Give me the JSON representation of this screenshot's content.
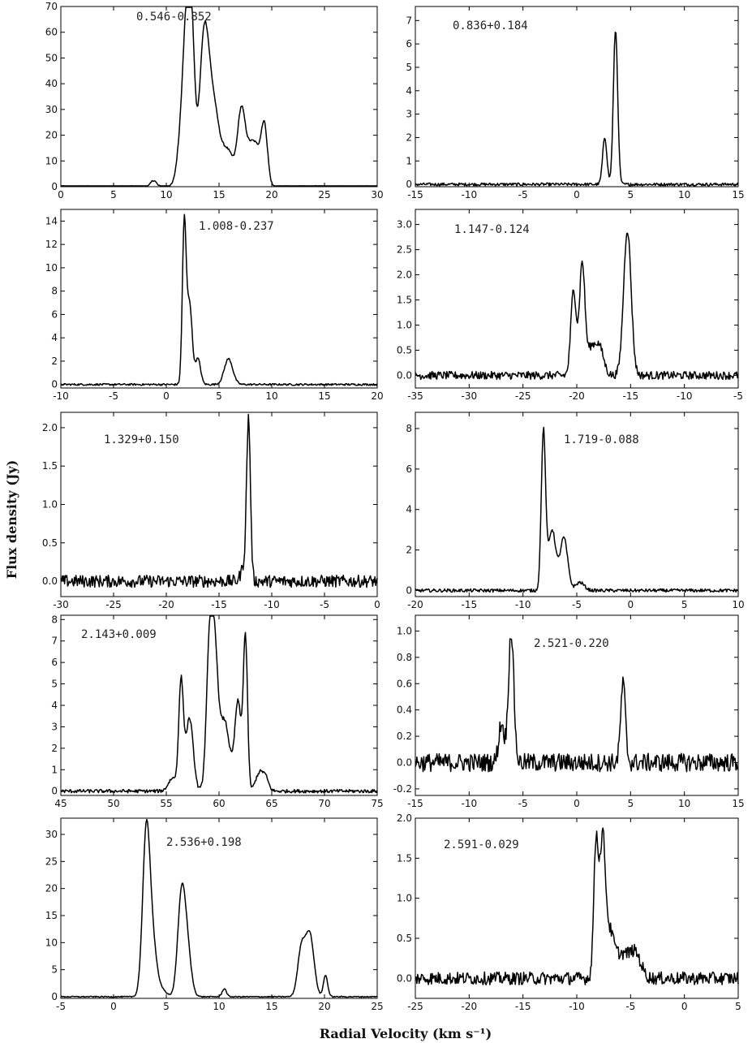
{
  "ylabel": "Flux density (Jy)",
  "xlabel": "Radial Velocity (km s⁻¹)",
  "chart_data": [
    {
      "type": "line",
      "title": "0.546-0.852",
      "xlim": [
        0,
        30
      ],
      "ylim": [
        0,
        70
      ],
      "xticks": [
        0,
        5,
        10,
        15,
        20,
        25,
        30
      ],
      "yticks": [
        0,
        10,
        20,
        30,
        40,
        50,
        60,
        70
      ],
      "xtick_labels": [
        "0",
        "5",
        "10",
        "15",
        "20",
        "25",
        "30"
      ],
      "ytick_labels": [
        "0",
        "10",
        "20",
        "30",
        "40",
        "50",
        "60",
        "70"
      ],
      "noise": 0.4,
      "peaks": [
        [
          8.8,
          2.5,
          0.25
        ],
        [
          11.3,
          13,
          0.35
        ],
        [
          11.9,
          58,
          0.35
        ],
        [
          12.4,
          52,
          0.3
        ],
        [
          13.6,
          58,
          0.45
        ],
        [
          14.5,
          28,
          0.5
        ],
        [
          15.8,
          14,
          0.6
        ],
        [
          17.1,
          26,
          0.35
        ],
        [
          17.9,
          14,
          0.5
        ],
        [
          18.6,
          10,
          0.4
        ],
        [
          19.3,
          23,
          0.3
        ]
      ],
      "series": [
        {
          "values": []
        }
      ]
    },
    {
      "type": "line",
      "title": "0.836+0.184",
      "xlim": [
        -15,
        15
      ],
      "ylim": [
        -0.1,
        7.6
      ],
      "xticks": [
        -15,
        -10,
        -5,
        0,
        5,
        10,
        15
      ],
      "yticks": [
        0,
        1,
        2,
        3,
        4,
        5,
        6,
        7
      ],
      "xtick_labels": [
        "-15",
        "-10",
        "-5",
        "0",
        "5",
        "10",
        "15"
      ],
      "ytick_labels": [
        "0",
        "1",
        "2",
        "3",
        "4",
        "5",
        "6",
        "7"
      ],
      "noise": 0.06,
      "peaks": [
        [
          2.6,
          2.0,
          0.2
        ],
        [
          3.6,
          6.6,
          0.2
        ]
      ],
      "series": [
        {
          "values": []
        }
      ]
    },
    {
      "type": "line",
      "title": "1.008-0.237",
      "xlim": [
        -10,
        20
      ],
      "ylim": [
        -0.3,
        15
      ],
      "xticks": [
        -10,
        -5,
        0,
        5,
        10,
        15,
        20
      ],
      "yticks": [
        0,
        2,
        4,
        6,
        8,
        10,
        12,
        14
      ],
      "xtick_labels": [
        "-10",
        "-5",
        "0",
        "5",
        "10",
        "15",
        "20"
      ],
      "ytick_labels": [
        "0",
        "2",
        "4",
        "6",
        "8",
        "10",
        "12",
        "14"
      ],
      "noise": 0.08,
      "peaks": [
        [
          1.7,
          13.5,
          0.18
        ],
        [
          2.2,
          7,
          0.25
        ],
        [
          3.0,
          2.2,
          0.25
        ],
        [
          5.9,
          2.2,
          0.4
        ]
      ],
      "series": [
        {
          "values": []
        }
      ]
    },
    {
      "type": "line",
      "title": "1.147-0.124",
      "xlim": [
        -35,
        -5
      ],
      "ylim": [
        -0.25,
        3.3
      ],
      "xticks": [
        -35,
        -30,
        -25,
        -20,
        -15,
        -10,
        -5
      ],
      "yticks": [
        0,
        0.5,
        1.0,
        1.5,
        2.0,
        2.5,
        3.0
      ],
      "xtick_labels": [
        "-35",
        "-30",
        "-25",
        "-20",
        "-15",
        "-10",
        "-5"
      ],
      "ytick_labels": [
        "0.0",
        "0.5",
        "1.0",
        "1.5",
        "2.0",
        "2.5",
        "3.0"
      ],
      "noise": 0.08,
      "peaks": [
        [
          -20.3,
          1.7,
          0.25
        ],
        [
          -19.5,
          2.2,
          0.25
        ],
        [
          -18.7,
          0.5,
          0.4
        ],
        [
          -17.9,
          0.55,
          0.4
        ],
        [
          -15.3,
          2.9,
          0.35
        ]
      ],
      "series": [
        {
          "values": []
        }
      ]
    },
    {
      "type": "line",
      "title": "1.329+0.150",
      "xlim": [
        -30,
        0
      ],
      "ylim": [
        -0.2,
        2.2
      ],
      "xticks": [
        -30,
        -25,
        -20,
        -15,
        -10,
        -5,
        0
      ],
      "yticks": [
        0,
        0.5,
        1.0,
        1.5,
        2.0
      ],
      "xtick_labels": [
        "-30",
        "-25",
        "-20",
        "-15",
        "-10",
        "-5",
        "0"
      ],
      "ytick_labels": [
        "0.0",
        "0.5",
        "1.0",
        "1.5",
        "2.0"
      ],
      "noise": 0.08,
      "peaks": [
        [
          -12.2,
          2.05,
          0.18
        ],
        [
          -12.6,
          0.2,
          0.3
        ]
      ],
      "series": [
        {
          "values": []
        }
      ]
    },
    {
      "type": "line",
      "title": "1.719-0.088",
      "xlim": [
        -20,
        10
      ],
      "ylim": [
        -0.3,
        8.8
      ],
      "xticks": [
        -20,
        -15,
        -10,
        -5,
        0,
        5,
        10
      ],
      "yticks": [
        0,
        2,
        4,
        6,
        8
      ],
      "xtick_labels": [
        "-20",
        "-15",
        "-10",
        "-5",
        "0",
        "5",
        "10"
      ],
      "ytick_labels": [
        "0",
        "2",
        "4",
        "6",
        "8"
      ],
      "noise": 0.08,
      "peaks": [
        [
          -8.1,
          7.8,
          0.2
        ],
        [
          -7.3,
          3.0,
          0.35
        ],
        [
          -6.2,
          2.6,
          0.35
        ],
        [
          -4.7,
          0.4,
          0.4
        ]
      ],
      "series": [
        {
          "values": []
        }
      ]
    },
    {
      "type": "line",
      "title": "2.143+0.009",
      "xlim": [
        45,
        75
      ],
      "ylim": [
        -0.2,
        8.2
      ],
      "xticks": [
        45,
        50,
        55,
        60,
        65,
        70,
        75
      ],
      "yticks": [
        0,
        1,
        2,
        3,
        4,
        5,
        6,
        7,
        8
      ],
      "xtick_labels": [
        "45",
        "50",
        "55",
        "60",
        "65",
        "70",
        "75"
      ],
      "ytick_labels": [
        "0",
        "1",
        "2",
        "3",
        "4",
        "5",
        "6",
        "7",
        "8"
      ],
      "noise": 0.08,
      "peaks": [
        [
          55.6,
          0.6,
          0.4
        ],
        [
          56.4,
          5.0,
          0.22
        ],
        [
          57.2,
          3.4,
          0.35
        ],
        [
          59.1,
          6.5,
          0.3
        ],
        [
          59.6,
          5.5,
          0.3
        ],
        [
          60.5,
          3.3,
          0.5
        ],
        [
          61.8,
          4.1,
          0.3
        ],
        [
          62.5,
          7.1,
          0.2
        ],
        [
          63.8,
          0.8,
          0.35
        ],
        [
          64.4,
          0.6,
          0.3
        ]
      ],
      "series": [
        {
          "values": []
        }
      ]
    },
    {
      "type": "line",
      "title": "2.521-0.220",
      "xlim": [
        -15,
        15
      ],
      "ylim": [
        -0.25,
        1.12
      ],
      "xticks": [
        -15,
        -10,
        -5,
        0,
        5,
        10,
        15
      ],
      "yticks": [
        -0.2,
        0,
        0.2,
        0.4,
        0.6,
        0.8,
        1.0
      ],
      "xtick_labels": [
        "-15",
        "-10",
        "-5",
        "0",
        "5",
        "10",
        "15"
      ],
      "ytick_labels": [
        "-0.2",
        "0.0",
        "0.2",
        "0.4",
        "0.6",
        "0.8",
        "1.0"
      ],
      "noise": 0.07,
      "peaks": [
        [
          -7.0,
          0.3,
          0.25
        ],
        [
          -6.1,
          1.0,
          0.25
        ],
        [
          4.3,
          0.6,
          0.22
        ]
      ],
      "series": [
        {
          "values": []
        }
      ]
    },
    {
      "type": "line",
      "title": "2.536+0.198",
      "xlim": [
        -5,
        25
      ],
      "ylim": [
        -0.3,
        33
      ],
      "xticks": [
        -5,
        0,
        5,
        10,
        15,
        20,
        25
      ],
      "yticks": [
        0,
        5,
        10,
        15,
        20,
        25,
        30
      ],
      "xtick_labels": [
        "-5",
        "0",
        "5",
        "10",
        "15",
        "20",
        "25"
      ],
      "ytick_labels": [
        "0",
        "5",
        "10",
        "15",
        "20",
        "25",
        "30"
      ],
      "noise": 0.1,
      "peaks": [
        [
          3.1,
          29.5,
          0.35
        ],
        [
          3.7,
          9,
          0.4
        ],
        [
          4.6,
          1.2,
          0.4
        ],
        [
          6.4,
          15.5,
          0.35
        ],
        [
          6.9,
          10,
          0.4
        ],
        [
          10.5,
          1.5,
          0.2
        ],
        [
          17.8,
          8.5,
          0.35
        ],
        [
          18.6,
          11.5,
          0.4
        ],
        [
          20.1,
          4,
          0.2
        ]
      ],
      "series": [
        {
          "values": []
        }
      ]
    },
    {
      "type": "line",
      "title": "2.591-0.029",
      "xlim": [
        -25,
        5
      ],
      "ylim": [
        -0.25,
        2.0
      ],
      "xticks": [
        -25,
        -20,
        -15,
        -10,
        -5,
        0,
        5
      ],
      "yticks": [
        0,
        0.5,
        1.0,
        1.5,
        2.0
      ],
      "xtick_labels": [
        "-25",
        "-20",
        "-15",
        "-10",
        "-5",
        "0",
        "5"
      ],
      "ytick_labels": [
        "0.0",
        "0.5",
        "1.0",
        "1.5",
        "2.0"
      ],
      "noise": 0.08,
      "peaks": [
        [
          -8.2,
          1.7,
          0.22
        ],
        [
          -7.6,
          1.6,
          0.25
        ],
        [
          -7.0,
          0.5,
          0.4
        ],
        [
          -5.8,
          0.3,
          0.8
        ],
        [
          -4.5,
          0.25,
          0.5
        ]
      ],
      "series": [
        {
          "values": []
        }
      ]
    }
  ]
}
